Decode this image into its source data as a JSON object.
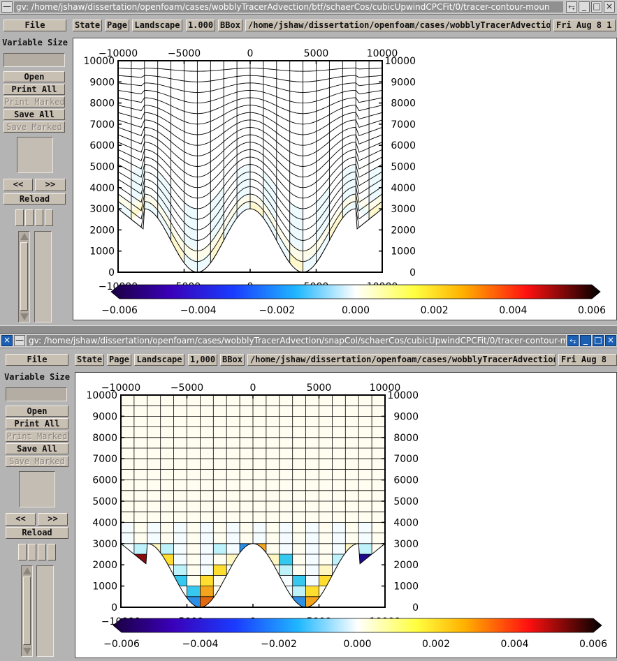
{
  "windows": [
    {
      "title": "gv: /home/jshaw/dissertation/openfoam/cases/wobblyTracerAdvection/btf/schaerCos/cubicUpwindCPCFit/0/tracer-contour-moun",
      "toolbar": {
        "state": "State",
        "page": "Page",
        "orientation": "Landscape",
        "scale": "1.000",
        "bbox": "BBox",
        "path": "/home/jshaw/dissertation/openfoam/cases/wobblyTracerAdvection/",
        "date": "Fri Aug  8 1"
      },
      "grid": "terrain-following",
      "colors": {
        "t0": "#ffffff",
        "t1": "#eefbfe",
        "t2": "#fdfbea",
        "t3": "#fff8cc"
      }
    },
    {
      "title": "gv: /home/jshaw/dissertation/openfoam/cases/wobblyTracerAdvection/snapCol/schaerCos/cubicUpwindCPCFit/0/tracer-contour-m",
      "toolbar": {
        "state": "State",
        "page": "Page",
        "orientation": "Landscape",
        "scale": "1,000",
        "bbox": "BBox",
        "path": "/home/jshaw/dissertation/openfoam/cases/wobblyTracerAdvection/",
        "date": "Fri Aug  8"
      },
      "grid": "cut-cell",
      "colors": {
        "low": "#2e8fe6",
        "midlow": "#36c8ee",
        "lightblue": "#bdf2fb",
        "paleyellow": "#fff6c2",
        "yellow": "#ffde30",
        "orange": "#f3a51e",
        "darkorange": "#e06a12",
        "red": "#e01010",
        "darkred": "#8a0a0a",
        "navy": "#1e0a8c",
        "blue": "#1a3ed8"
      }
    }
  ],
  "sidebar": {
    "file": "File",
    "variable_size": "Variable Size",
    "open": "Open",
    "print_all": "Print All",
    "print_marked": "Print Marked",
    "save_all": "Save All",
    "save_marked": "Save Marked",
    "prev": "<<",
    "next": ">>",
    "reload": "Reload"
  },
  "chart_data": [
    {
      "type": "heatmap",
      "title": "",
      "x_ticks": [
        -10000,
        -5000,
        0,
        5000,
        10000
      ],
      "y_ticks": [
        0,
        1000,
        2000,
        3000,
        4000,
        5000,
        6000,
        7000,
        8000,
        9000,
        10000
      ],
      "x_tick_labels": [
        "−10000",
        "−5000",
        "0",
        "5000",
        "10000"
      ],
      "y_tick_labels": [
        "0",
        "1000",
        "2000",
        "3000",
        "4000",
        "5000",
        "6000",
        "7000",
        "8000",
        "9000",
        "10000"
      ],
      "xlim": [
        -10000,
        10000
      ],
      "ylim": [
        0,
        10000
      ],
      "terrain": {
        "shape": "cosine mountains",
        "peaks_x": [
          -10000,
          0,
          10000
        ],
        "troughs_x": [
          -4000,
          4000
        ],
        "peak_height": 3000
      },
      "colorbar": {
        "min": -0.006,
        "max": 0.006,
        "ticks": [
          -0.006,
          -0.004,
          -0.002,
          0.0,
          0.002,
          0.004,
          0.006
        ],
        "tick_labels": [
          "−0.006",
          "−0.004",
          "−0.002",
          "0.000",
          "0.002",
          "0.004",
          "0.006"
        ]
      }
    },
    {
      "type": "heatmap",
      "title": "",
      "x_ticks": [
        -10000,
        -5000,
        0,
        5000,
        10000
      ],
      "y_ticks": [
        0,
        1000,
        2000,
        3000,
        4000,
        5000,
        6000,
        7000,
        8000,
        9000,
        10000
      ],
      "x_tick_labels": [
        "−10000",
        "−5000",
        "0",
        "5000",
        "10000"
      ],
      "y_tick_labels": [
        "0",
        "1000",
        "2000",
        "3000",
        "4000",
        "5000",
        "6000",
        "7000",
        "8000",
        "9000",
        "10000"
      ],
      "xlim": [
        -10000,
        10000
      ],
      "ylim": [
        0,
        10000
      ],
      "terrain": {
        "shape": "cosine mountains",
        "peaks_x": [
          -10000,
          0,
          10000
        ],
        "troughs_x": [
          -4000,
          4000
        ],
        "peak_height": 3000
      },
      "colorbar": {
        "min": -0.006,
        "max": 0.006,
        "ticks": [
          -0.006,
          -0.004,
          -0.002,
          0.0,
          0.002,
          0.004,
          0.006
        ],
        "tick_labels": [
          "−0.006",
          "−0.004",
          "−0.002",
          "0.000",
          "0.002",
          "0.004",
          "0.006"
        ]
      }
    }
  ]
}
